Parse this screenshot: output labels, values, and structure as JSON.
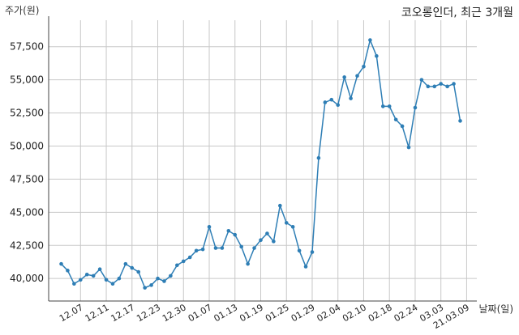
{
  "chart_data": {
    "type": "line",
    "title": "코오롱인더, 최근 3개월",
    "ylabel": "주가(원)",
    "xlabel": "날짜(일)",
    "ylim": [
      38300,
      59500
    ],
    "yticks": [
      40000,
      42500,
      45000,
      47500,
      50000,
      52500,
      55000,
      57500
    ],
    "ytick_labels": [
      "40,000",
      "42,500",
      "45,000",
      "47,500",
      "50,000",
      "52,500",
      "55,000",
      "57,500"
    ],
    "xtick_labels": [
      "12.07",
      "12.11",
      "12.17",
      "12.23",
      "12.30",
      "01.07",
      "01.13",
      "01.19",
      "01.25",
      "01.29",
      "02.04",
      "02.10",
      "02.18",
      "02.24",
      "03.03",
      "21.03.09"
    ],
    "xtick_index": [
      3,
      7,
      11,
      15,
      19,
      23,
      27,
      31,
      35,
      39,
      43,
      47,
      51,
      55,
      59,
      63
    ],
    "grid": true,
    "line_color": "#2e7eb5",
    "series": [
      {
        "values": [
          41100,
          40600,
          39600,
          39900,
          40300,
          40200,
          40700,
          39900,
          39600,
          40000,
          41100,
          40800,
          40500,
          39300,
          39500,
          40000,
          39800,
          40200,
          41000,
          41300,
          41600,
          42100,
          42200,
          43900,
          42300,
          42300,
          43600,
          43300,
          42400,
          41100,
          42300,
          42900,
          43400,
          42800,
          45500,
          44200,
          43900,
          42100,
          40900,
          42000,
          49100,
          53300,
          53500,
          53100,
          55200,
          53600,
          55300,
          56000,
          58000,
          56800,
          53000,
          53000,
          52000,
          51500,
          49900,
          52900,
          55000,
          54500,
          54500,
          54700,
          54500,
          54700,
          51900
        ]
      }
    ]
  }
}
